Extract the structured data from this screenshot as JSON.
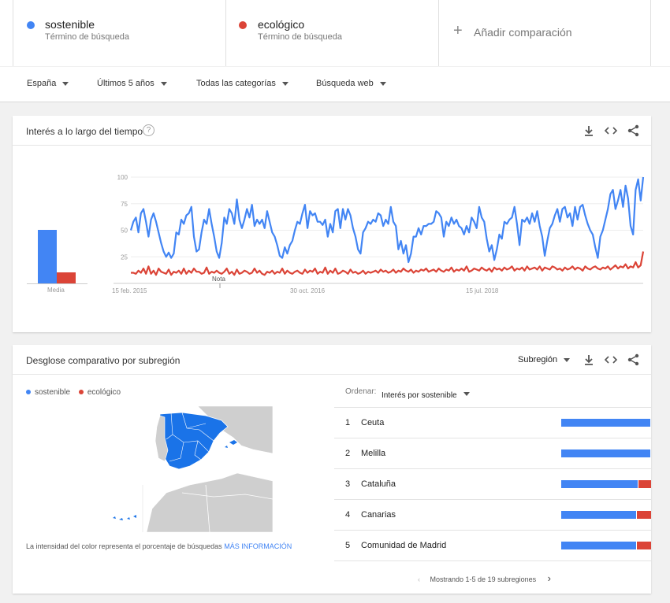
{
  "colors": {
    "sostenible": "#4285f4",
    "ecologico": "#db4437",
    "map_fill": "#1a73e8"
  },
  "comparison": {
    "terms": [
      {
        "name": "sostenible",
        "type": "Término de búsqueda"
      },
      {
        "name": "ecológico",
        "type": "Término de búsqueda"
      }
    ],
    "add_label": "Añadir comparación"
  },
  "filters": {
    "country": "España",
    "period": "Últimos 5 años",
    "category": "Todas las categorías",
    "search_type": "Búsqueda web"
  },
  "interest_card": {
    "title": "Interés a lo largo del tiempo",
    "help": "?",
    "media_label": "Media",
    "note_label": "Nota",
    "x_labels": [
      "15 feb. 2015",
      "30 oct. 2016",
      "15 jul. 2018"
    ],
    "y_labels": [
      "100",
      "75",
      "50",
      "25"
    ]
  },
  "chart_data": {
    "type": "line",
    "title": "",
    "xlabel": "",
    "ylabel": "",
    "ylim": [
      0,
      100
    ],
    "x_ticks": [
      "15 feb. 2015",
      "30 oct. 2016",
      "15 jul. 2018"
    ],
    "y_ticks": [
      100,
      75,
      50,
      25
    ],
    "averages": [
      {
        "name": "sostenible",
        "value": 52
      },
      {
        "name": "ecológico",
        "value": 11
      }
    ],
    "series": [
      {
        "name": "sostenible",
        "values": [
          50,
          58,
          62,
          48,
          66,
          70,
          58,
          44,
          60,
          66,
          58,
          48,
          38,
          30,
          25,
          29,
          24,
          28,
          48,
          46,
          60,
          56,
          64,
          66,
          72,
          44,
          30,
          32,
          48,
          60,
          56,
          70,
          56,
          44,
          30,
          24,
          38,
          62,
          56,
          70,
          66,
          56,
          79,
          60,
          52,
          60,
          70,
          62,
          74,
          54,
          60,
          56,
          60,
          52,
          68,
          58,
          48,
          44,
          36,
          26,
          24,
          34,
          28,
          36,
          40,
          50,
          58,
          56,
          66,
          74,
          52,
          68,
          64,
          66,
          58,
          58,
          55,
          60,
          44,
          56,
          48,
          68,
          70,
          52,
          70,
          60,
          70,
          64,
          52,
          44,
          32,
          28,
          48,
          52,
          58,
          56,
          60,
          58,
          66,
          64,
          54,
          60,
          56,
          72,
          58,
          54,
          32,
          40,
          28,
          36,
          20,
          28,
          44,
          44,
          52,
          46,
          54,
          54,
          56,
          56,
          58,
          68,
          66,
          62,
          44,
          58,
          54,
          62,
          56,
          60,
          54,
          52,
          46,
          54,
          48,
          62,
          58,
          52,
          72,
          62,
          58,
          42,
          30,
          36,
          22,
          32,
          46,
          42,
          58,
          56,
          60,
          62,
          72,
          56,
          36,
          60,
          58,
          62,
          56,
          66,
          58,
          68,
          54,
          44,
          26,
          40,
          52,
          56,
          64,
          70,
          58,
          70,
          72,
          62,
          66,
          54,
          72,
          60,
          72,
          74,
          64,
          56,
          50,
          46,
          34,
          24,
          44,
          50,
          60,
          70,
          84,
          88,
          70,
          78,
          88,
          72,
          92,
          80,
          54,
          46,
          88,
          98,
          78,
          100
        ]
      },
      {
        "name": "ecológico",
        "values": [
          10,
          10,
          9,
          12,
          10,
          14,
          9,
          16,
          9,
          12,
          8,
          14,
          11,
          10,
          9,
          13,
          8,
          11,
          10,
          12,
          9,
          14,
          9,
          12,
          10,
          14,
          11,
          11,
          9,
          10,
          15,
          9,
          11,
          10,
          12,
          10,
          9,
          11,
          14,
          9,
          11,
          8,
          13,
          9,
          10,
          12,
          11,
          9,
          10,
          14,
          10,
          12,
          9,
          8,
          11,
          10,
          12,
          9,
          11,
          10,
          14,
          9,
          12,
          10,
          9,
          11,
          12,
          10,
          9,
          13,
          10,
          12,
          11,
          14,
          9,
          11,
          10,
          15,
          9,
          12,
          10,
          14,
          9,
          10,
          12,
          11,
          9,
          13,
          10,
          11,
          9,
          10,
          12,
          9,
          11,
          10,
          11,
          12,
          10,
          13,
          11,
          12,
          10,
          11,
          13,
          10,
          12,
          11,
          14,
          12,
          11,
          13,
          10,
          12,
          11,
          13,
          12,
          14,
          11,
          12,
          13,
          11,
          14,
          12,
          11,
          13,
          12,
          15,
          11,
          13,
          12,
          14,
          12,
          16,
          11,
          12,
          14,
          13,
          12,
          15,
          13,
          12,
          14,
          11,
          15,
          13,
          14,
          12,
          15,
          13,
          14,
          16,
          12,
          14,
          13,
          15,
          12,
          16,
          13,
          14,
          15,
          13,
          16,
          12,
          15,
          14,
          13,
          16,
          15,
          13,
          14,
          12,
          15,
          13,
          14,
          16,
          13,
          15,
          14,
          12,
          16,
          14,
          13,
          15,
          16,
          14,
          13,
          15,
          14,
          16,
          13,
          15,
          17,
          14,
          16,
          15,
          18,
          14,
          16,
          15,
          20,
          15,
          17,
          30
        ]
      }
    ]
  },
  "region_card": {
    "title": "Desglose comparativo por subregión",
    "dropdown": "Subregión",
    "legend": [
      "sostenible",
      "ecológico"
    ],
    "order_label": "Ordenar:",
    "order_value": "Interés por sostenible",
    "rows": [
      {
        "rank": "1",
        "name": "Ceuta",
        "sostenible": 100,
        "ecologico": 0
      },
      {
        "rank": "2",
        "name": "Melilla",
        "sostenible": 100,
        "ecologico": 0
      },
      {
        "rank": "3",
        "name": "Cataluña",
        "sostenible": 86,
        "ecologico": 14
      },
      {
        "rank": "4",
        "name": "Canarias",
        "sostenible": 84,
        "ecologico": 16
      },
      {
        "rank": "5",
        "name": "Comunidad de Madrid",
        "sostenible": 84,
        "ecologico": 16
      }
    ],
    "note_text": "La intensidad del color representa el porcentaje de búsquedas",
    "note_link": "MÁS INFORMACIÓN",
    "pager_text": "Mostrando 1-5 de 19 subregiones"
  }
}
